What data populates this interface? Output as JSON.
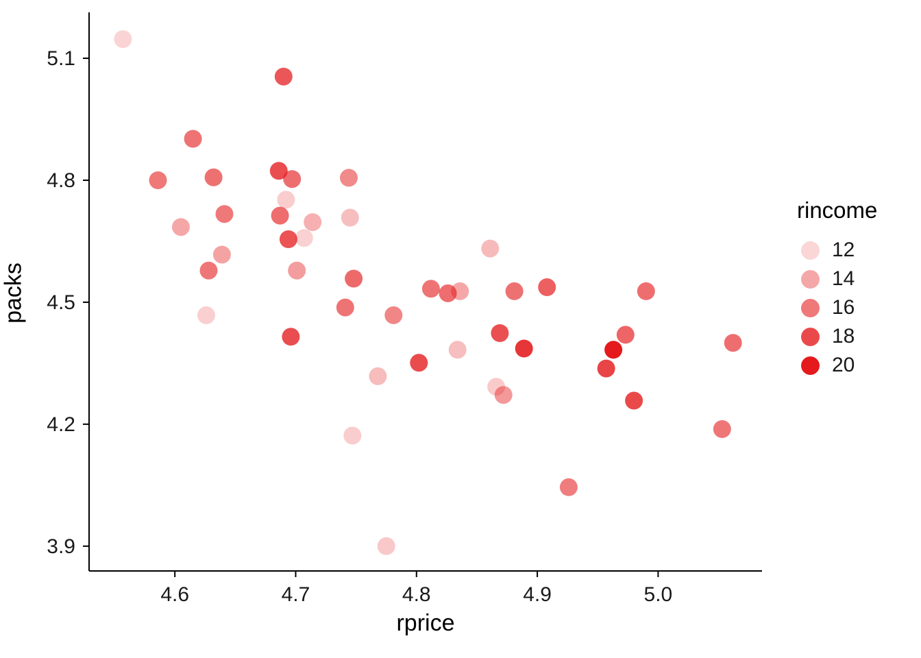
{
  "figure": {
    "background": "#ffffff",
    "text_color": "#1a1a1a",
    "axis_color": "#000000"
  },
  "chart_data": {
    "type": "scatter",
    "title": "",
    "xlabel": "rprice",
    "ylabel": "packs",
    "x_domain": [
      4.529,
      5.086
    ],
    "y_domain": [
      3.839,
      5.213
    ],
    "x_ticks": [
      4.6,
      4.7,
      4.8,
      4.9,
      5.0
    ],
    "x_tick_labels": [
      "4.6",
      "4.7",
      "4.8",
      "4.9",
      "5.0"
    ],
    "y_ticks": [
      3.9,
      4.2,
      4.5,
      4.8,
      5.1
    ],
    "y_tick_labels": [
      "3.9",
      "4.2",
      "4.5",
      "4.8",
      "5.1"
    ],
    "grid": false,
    "legend_position": "right",
    "legend_title": "rincome",
    "legend_values": [
      12,
      14,
      16,
      18,
      20
    ],
    "legend_labels": [
      "12",
      "14",
      "16",
      "18",
      "20"
    ],
    "color_scale": {
      "rgb": [
        228,
        26,
        28
      ],
      "domain": [
        12,
        20
      ],
      "alpha_range": [
        0.18,
        1.0
      ]
    },
    "point_radius": 13,
    "points": [
      {
        "rprice": 4.557,
        "packs": 5.147,
        "rincome": 12.1
      },
      {
        "rprice": 4.69,
        "packs": 5.055,
        "rincome": 17.4
      },
      {
        "rprice": 4.615,
        "packs": 4.902,
        "rincome": 16.2
      },
      {
        "rprice": 4.586,
        "packs": 4.8,
        "rincome": 16.0
      },
      {
        "rprice": 4.632,
        "packs": 4.807,
        "rincome": 16.3
      },
      {
        "rprice": 4.686,
        "packs": 4.823,
        "rincome": 17.8
      },
      {
        "rprice": 4.697,
        "packs": 4.803,
        "rincome": 16.4
      },
      {
        "rprice": 4.744,
        "packs": 4.806,
        "rincome": 15.2
      },
      {
        "rprice": 4.692,
        "packs": 4.752,
        "rincome": 12.4
      },
      {
        "rprice": 4.641,
        "packs": 4.717,
        "rincome": 16.0
      },
      {
        "rprice": 4.687,
        "packs": 4.713,
        "rincome": 16.5
      },
      {
        "rprice": 4.745,
        "packs": 4.708,
        "rincome": 13.0
      },
      {
        "rprice": 4.605,
        "packs": 4.685,
        "rincome": 14.0
      },
      {
        "rprice": 4.714,
        "packs": 4.697,
        "rincome": 13.6
      },
      {
        "rprice": 4.694,
        "packs": 4.655,
        "rincome": 17.6
      },
      {
        "rprice": 4.707,
        "packs": 4.658,
        "rincome": 12.2
      },
      {
        "rprice": 4.639,
        "packs": 4.617,
        "rincome": 14.2
      },
      {
        "rprice": 4.861,
        "packs": 4.632,
        "rincome": 13.2
      },
      {
        "rprice": 4.628,
        "packs": 4.578,
        "rincome": 16.1
      },
      {
        "rprice": 4.701,
        "packs": 4.578,
        "rincome": 14.4
      },
      {
        "rprice": 4.748,
        "packs": 4.558,
        "rincome": 16.6
      },
      {
        "rprice": 4.812,
        "packs": 4.533,
        "rincome": 16.2
      },
      {
        "rprice": 4.826,
        "packs": 4.522,
        "rincome": 16.4
      },
      {
        "rprice": 4.836,
        "packs": 4.527,
        "rincome": 14.0
      },
      {
        "rprice": 4.881,
        "packs": 4.527,
        "rincome": 16.3
      },
      {
        "rprice": 4.908,
        "packs": 4.537,
        "rincome": 17.0
      },
      {
        "rprice": 4.99,
        "packs": 4.527,
        "rincome": 16.4
      },
      {
        "rprice": 4.741,
        "packs": 4.487,
        "rincome": 16.2
      },
      {
        "rprice": 4.626,
        "packs": 4.468,
        "rincome": 12.3
      },
      {
        "rprice": 4.781,
        "packs": 4.468,
        "rincome": 15.4
      },
      {
        "rprice": 4.696,
        "packs": 4.415,
        "rincome": 17.8
      },
      {
        "rprice": 4.869,
        "packs": 4.424,
        "rincome": 17.7
      },
      {
        "rprice": 4.973,
        "packs": 4.42,
        "rincome": 16.8
      },
      {
        "rprice": 4.889,
        "packs": 4.386,
        "rincome": 18.8
      },
      {
        "rprice": 4.963,
        "packs": 4.383,
        "rincome": 20.0
      },
      {
        "rprice": 5.062,
        "packs": 4.4,
        "rincome": 16.4
      },
      {
        "rprice": 4.834,
        "packs": 4.383,
        "rincome": 13.0
      },
      {
        "rprice": 4.802,
        "packs": 4.351,
        "rincome": 17.9
      },
      {
        "rprice": 4.957,
        "packs": 4.337,
        "rincome": 18.2
      },
      {
        "rprice": 4.768,
        "packs": 4.318,
        "rincome": 13.1
      },
      {
        "rprice": 4.866,
        "packs": 4.292,
        "rincome": 12.5
      },
      {
        "rprice": 4.872,
        "packs": 4.272,
        "rincome": 14.6
      },
      {
        "rprice": 4.98,
        "packs": 4.258,
        "rincome": 18.0
      },
      {
        "rprice": 4.747,
        "packs": 4.172,
        "rincome": 12.4
      },
      {
        "rprice": 5.053,
        "packs": 4.188,
        "rincome": 16.1
      },
      {
        "rprice": 4.926,
        "packs": 4.045,
        "rincome": 15.8
      },
      {
        "rprice": 4.775,
        "packs": 3.9,
        "rincome": 12.6
      }
    ]
  }
}
